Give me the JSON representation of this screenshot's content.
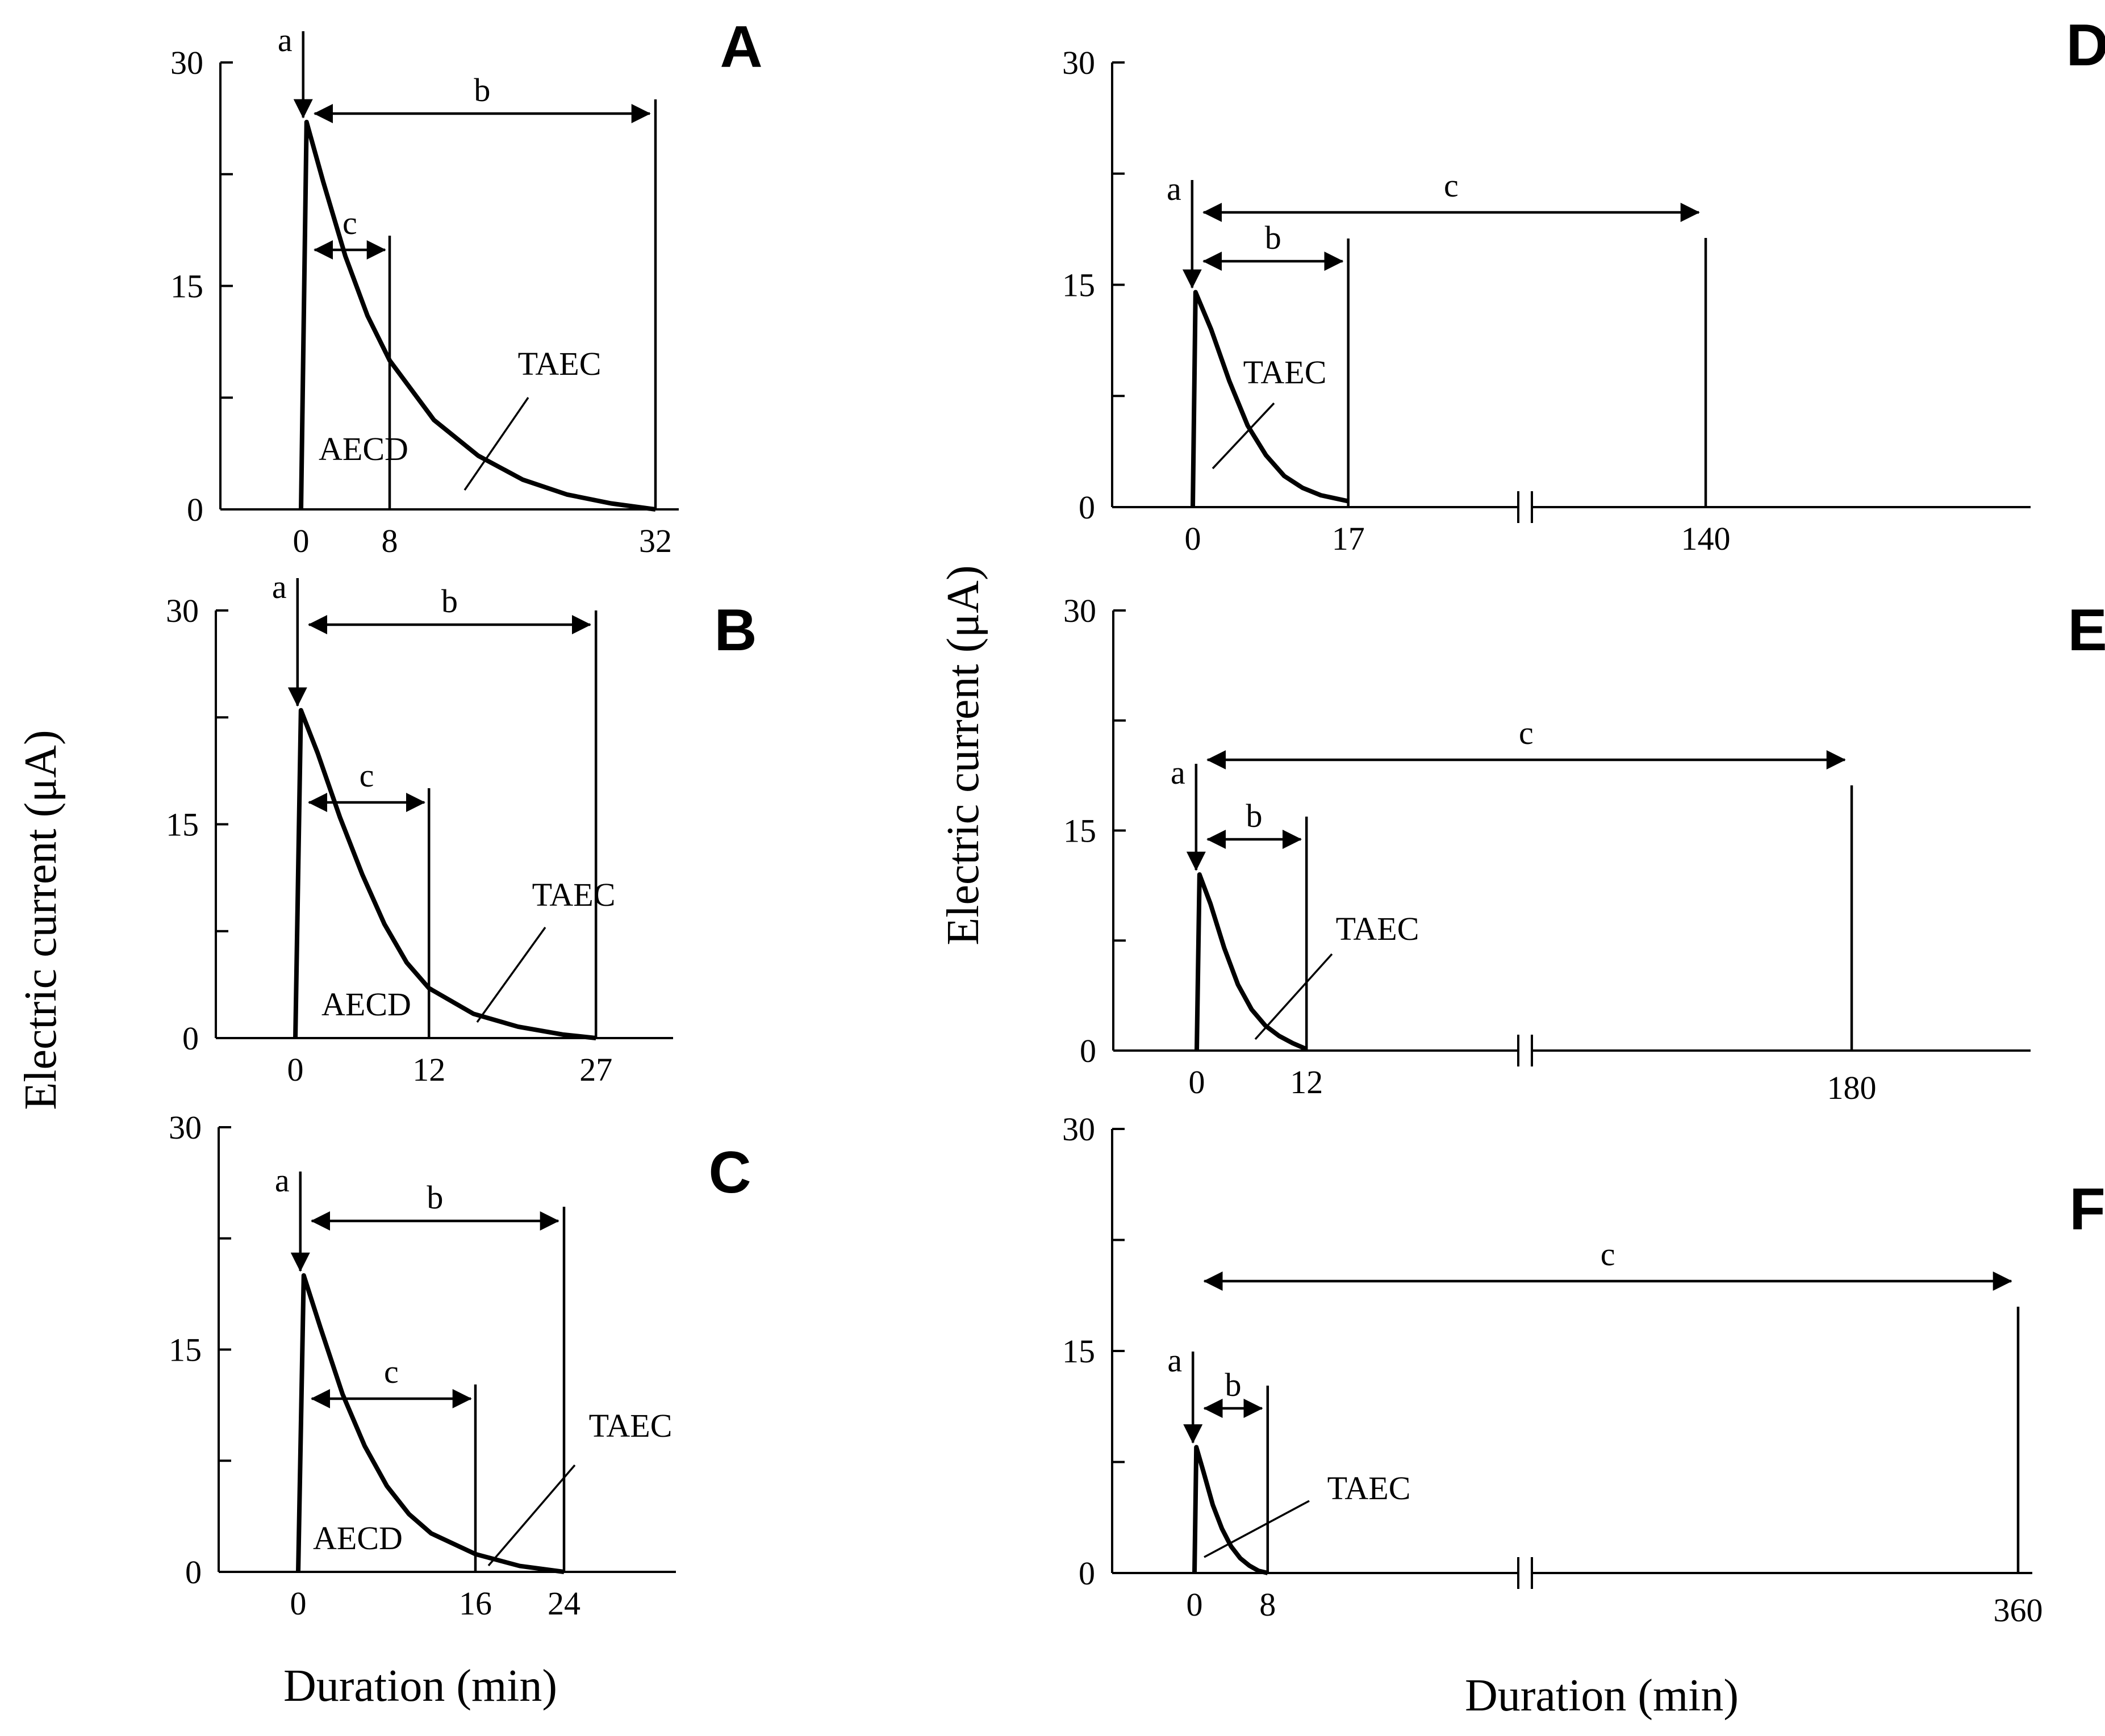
{
  "figure": {
    "y_axis_title": "Electric current (μA)",
    "x_axis_title": "Duration (min)"
  },
  "chart_data": [
    {
      "panel": "A",
      "type": "line",
      "xlabel": "Duration (min)",
      "ylabel": "Electric current (μA)",
      "ylim": [
        0,
        30
      ],
      "y_ticks": [
        "0",
        "15",
        "30"
      ],
      "x_ticks": [
        "0",
        "8",
        "32"
      ],
      "axis_break": false,
      "peak_current": 26,
      "decay_end": 32,
      "series": [
        {
          "name": "current",
          "x": [
            0,
            0.5,
            2,
            4,
            6,
            8,
            12,
            16,
            20,
            24,
            28,
            32
          ],
          "y": [
            0,
            26,
            22.0,
            17.0,
            13.0,
            10.0,
            6.0,
            3.6,
            2.0,
            1.0,
            0.4,
            0
          ]
        }
      ],
      "annotations": {
        "a": "a",
        "b": "b",
        "c": "c",
        "taec": "TAEC",
        "aecd": "AECD"
      },
      "b_range": [
        0.5,
        32
      ],
      "c_range": [
        0.5,
        8
      ]
    },
    {
      "panel": "B",
      "type": "line",
      "xlabel": "Duration (min)",
      "ylabel": "Electric current (μA)",
      "ylim": [
        0,
        30
      ],
      "y_ticks": [
        "0",
        "15",
        "30"
      ],
      "x_ticks": [
        "0",
        "12",
        "27"
      ],
      "axis_break": false,
      "peak_current": 23,
      "decay_end": 27,
      "series": [
        {
          "name": "current",
          "x": [
            0,
            0.5,
            2,
            4,
            6,
            8,
            10,
            12,
            16,
            20,
            24,
            27
          ],
          "y": [
            0,
            23,
            20.0,
            15.5,
            11.5,
            8.0,
            5.3,
            3.5,
            1.7,
            0.8,
            0.25,
            0
          ]
        }
      ],
      "annotations": {
        "a": "a",
        "b": "b",
        "c": "c",
        "taec": "TAEC",
        "aecd": "AECD"
      },
      "b_range": [
        0.5,
        27
      ],
      "c_range": [
        0.5,
        12
      ]
    },
    {
      "panel": "C",
      "type": "line",
      "xlabel": "Duration (min)",
      "ylabel": "Electric current (μA)",
      "ylim": [
        0,
        30
      ],
      "y_ticks": [
        "0",
        "15",
        "30"
      ],
      "x_ticks": [
        "0",
        "16",
        "24"
      ],
      "axis_break": false,
      "peak_current": 20,
      "decay_end": 24,
      "series": [
        {
          "name": "current",
          "x": [
            0,
            0.5,
            2,
            4,
            6,
            8,
            10,
            12,
            16,
            20,
            24
          ],
          "y": [
            0,
            20,
            16.5,
            12.0,
            8.5,
            5.8,
            3.9,
            2.6,
            1.2,
            0.4,
            0
          ]
        }
      ],
      "annotations": {
        "a": "a",
        "b": "b",
        "c": "c",
        "taec": "TAEC",
        "aecd": "AECD"
      },
      "b_range": [
        0.5,
        24
      ],
      "c_range": [
        0.5,
        16
      ]
    },
    {
      "panel": "D",
      "type": "line",
      "xlabel": "Duration (min)",
      "ylabel": "Electric current (μA)",
      "ylim": [
        0,
        30
      ],
      "y_ticks": [
        "0",
        "15",
        "30"
      ],
      "x_ticks": [
        "0",
        "17",
        "140"
      ],
      "axis_break": true,
      "peak_current": 14.5,
      "decay_end": 17,
      "series": [
        {
          "name": "current",
          "x": [
            0,
            0.3,
            2,
            4,
            6,
            8,
            10,
            12,
            14,
            17
          ],
          "y": [
            0,
            14.5,
            12.0,
            8.5,
            5.5,
            3.5,
            2.1,
            1.3,
            0.8,
            0.4
          ]
        }
      ],
      "annotations": {
        "a": "a",
        "b": "b",
        "c": "c",
        "taec": "TAEC"
      },
      "b_range": [
        0.3,
        17
      ],
      "c_range": [
        0.3,
        140
      ]
    },
    {
      "panel": "E",
      "type": "line",
      "xlabel": "Duration (min)",
      "ylabel": "Electric current (μA)",
      "ylim": [
        0,
        30
      ],
      "y_ticks": [
        "0",
        "15",
        "30"
      ],
      "x_ticks": [
        "0",
        "12",
        "180"
      ],
      "axis_break": true,
      "peak_current": 12,
      "decay_end": 12,
      "series": [
        {
          "name": "current",
          "x": [
            0,
            0.3,
            1.5,
            3,
            4.5,
            6,
            7.5,
            9,
            10.5,
            12
          ],
          "y": [
            0,
            12,
            10.0,
            7.0,
            4.5,
            2.8,
            1.7,
            1.0,
            0.5,
            0.1
          ]
        }
      ],
      "annotations": {
        "a": "a",
        "b": "b",
        "c": "c",
        "taec": "TAEC"
      },
      "b_range": [
        0.3,
        12
      ],
      "c_range": [
        0.3,
        180
      ]
    },
    {
      "panel": "F",
      "type": "line",
      "xlabel": "Duration (min)",
      "ylabel": "Electric current (μA)",
      "ylim": [
        0,
        30
      ],
      "y_ticks": [
        "0",
        "15",
        "30"
      ],
      "x_ticks": [
        "0",
        "8",
        "360"
      ],
      "axis_break": true,
      "peak_current": 8.5,
      "decay_end": 8,
      "series": [
        {
          "name": "current",
          "x": [
            0,
            0.2,
            1,
            2,
            3,
            4,
            5,
            6,
            7,
            8
          ],
          "y": [
            0,
            8.5,
            6.8,
            4.6,
            3.0,
            1.8,
            1.0,
            0.5,
            0.15,
            0
          ]
        }
      ],
      "annotations": {
        "a": "a",
        "b": "b",
        "c": "c",
        "taec": "TAEC"
      },
      "b_range": [
        0.2,
        8
      ],
      "c_range": [
        0.2,
        360
      ]
    }
  ]
}
